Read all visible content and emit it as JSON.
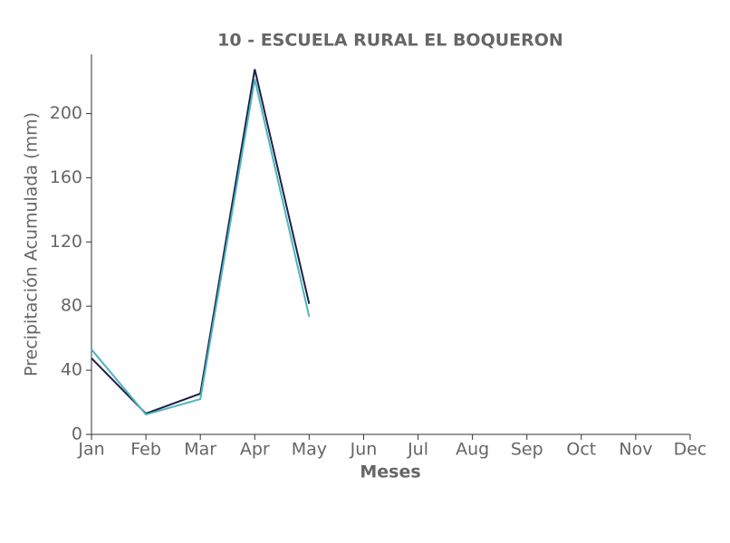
{
  "chart_data": {
    "type": "line",
    "title": "10 - ESCUELA RURAL EL BOQUERON",
    "xlabel": "Meses",
    "ylabel": "Precipitación Acumulada (mm)",
    "categories": [
      "Jan",
      "Feb",
      "Mar",
      "Apr",
      "May",
      "Jun",
      "Jul",
      "Aug",
      "Sep",
      "Oct",
      "Nov",
      "Dec"
    ],
    "series": [
      {
        "color": "#1f1f45",
        "values": [
          47.5,
          13,
          25.4,
          227.7,
          81.4,
          null,
          null,
          null,
          null,
          null,
          null,
          null
        ]
      },
      {
        "color": "#4bb5c1",
        "values": [
          53,
          12.4,
          22,
          221.5,
          73.4,
          null,
          null,
          null,
          null,
          null,
          null,
          null
        ]
      }
    ],
    "ylim": [
      0,
      237
    ],
    "yticks": [
      0,
      40,
      80,
      120,
      160,
      200
    ],
    "grid": false
  }
}
